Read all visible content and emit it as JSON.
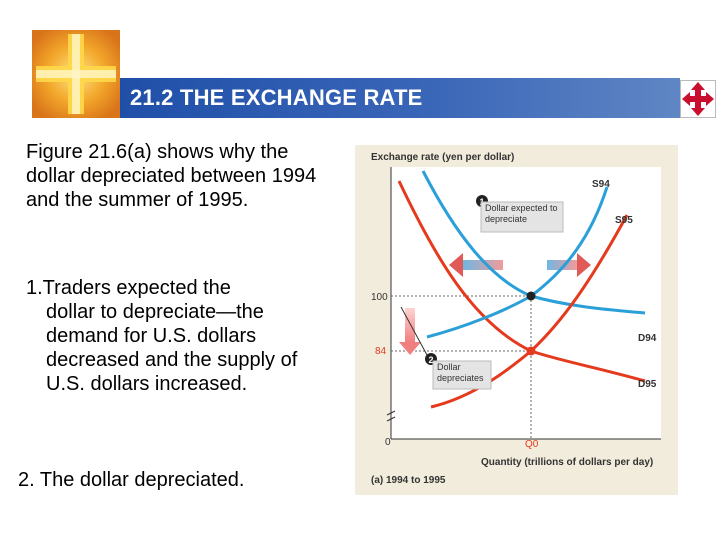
{
  "slide": {
    "title": "21.2 THE EXCHANGE RATE",
    "icons": {
      "logo": "cross-logo-icon",
      "nav": "four-way-arrow-icon"
    },
    "colors": {
      "title_bar": "#2b59ad",
      "curve_blue": "#2b9fd8",
      "curve_red": "#e53a1e",
      "chart_bg": "#f2ecdc",
      "nav_icon": "#c8102e"
    }
  },
  "body": {
    "paragraph1": "Figure 21.6(a) shows why the dollar depreciated between 1994 and the summer of 1995.",
    "point1_first": "1.Traders expected the",
    "point1_rest": "dollar to depreciate—the demand for U.S. dollars decreased and the supply of U.S. dollars increased.",
    "point2": "2. The dollar depreciated."
  },
  "chart_data": {
    "type": "line",
    "ylabel": "Exchange rate (yen per dollar)",
    "xlabel": "Quantity (trillions of dollars per day)",
    "caption": "(a) 1994 to 1995",
    "y_ticks": [
      "100",
      "84"
    ],
    "x_ticks": [
      "0",
      "Q0"
    ],
    "series": [
      {
        "name": "S94",
        "color": "#2b9fd8"
      },
      {
        "name": "S95",
        "color": "#e53a1e"
      },
      {
        "name": "D94",
        "color": "#2b9fd8"
      },
      {
        "name": "D95",
        "color": "#e53a1e"
      }
    ],
    "equilibria": [
      {
        "y": 100,
        "x": "Q0"
      },
      {
        "y": 84,
        "x": "Q0"
      }
    ],
    "annotations": [
      {
        "number": "1",
        "text": "Dollar expected to depreciate"
      },
      {
        "number": "2",
        "text": "Dollar depreciates"
      }
    ]
  }
}
